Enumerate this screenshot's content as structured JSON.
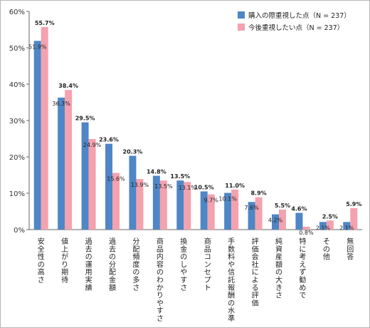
{
  "chart_data": {
    "type": "bar",
    "categories": [
      "安全性の高さ",
      "値上がり期待",
      "過去の運用実績",
      "過去の分配金額",
      "分配頻度の多さ",
      "商品内容のわかりやすさ",
      "換金のしやすさ",
      "商品コンセプト",
      "手数料や信託報酬の水準",
      "評価会社による評価",
      "純資産額の大きさ",
      "特に考えず勧めで",
      "その他",
      "無回答"
    ],
    "series": [
      {
        "name": "購入の際重視した点（N = 237）",
        "color": "#4f86c6",
        "values": [
          51.9,
          36.3,
          29.5,
          23.6,
          20.3,
          14.8,
          13.5,
          10.5,
          10.1,
          7.6,
          4.2,
          4.6,
          2.1,
          2.1
        ],
        "labels": [
          "51.9%",
          "36.3%",
          "29.5%",
          "23.6%",
          "20.3%",
          "14.8%",
          "13.5%",
          "10.5%",
          "10.1%",
          "7.6%",
          "4.2%",
          "4.6%",
          "2.1%",
          "2.1%"
        ]
      },
      {
        "name": "今後重視したい点（N = 237）",
        "color": "#f4a2ae",
        "values": [
          55.7,
          38.4,
          24.9,
          15.6,
          13.9,
          13.5,
          13.1,
          9.7,
          11.0,
          8.9,
          5.5,
          0.8,
          2.5,
          5.9
        ],
        "labels": [
          "55.7%",
          "38.4%",
          "24.9%",
          "15.6%",
          "13.9%",
          "13.5%",
          "13.1%",
          "9.7%",
          "11.0%",
          "8.9%",
          "5.5%",
          "0.8%",
          "2.5%",
          "5.9%"
        ]
      }
    ],
    "ylim": [
      0,
      60
    ],
    "yticks": [
      "0%",
      "10%",
      "20%",
      "30%",
      "40%",
      "50%",
      "60%"
    ],
    "grid": false,
    "legend_position": "top-right"
  }
}
